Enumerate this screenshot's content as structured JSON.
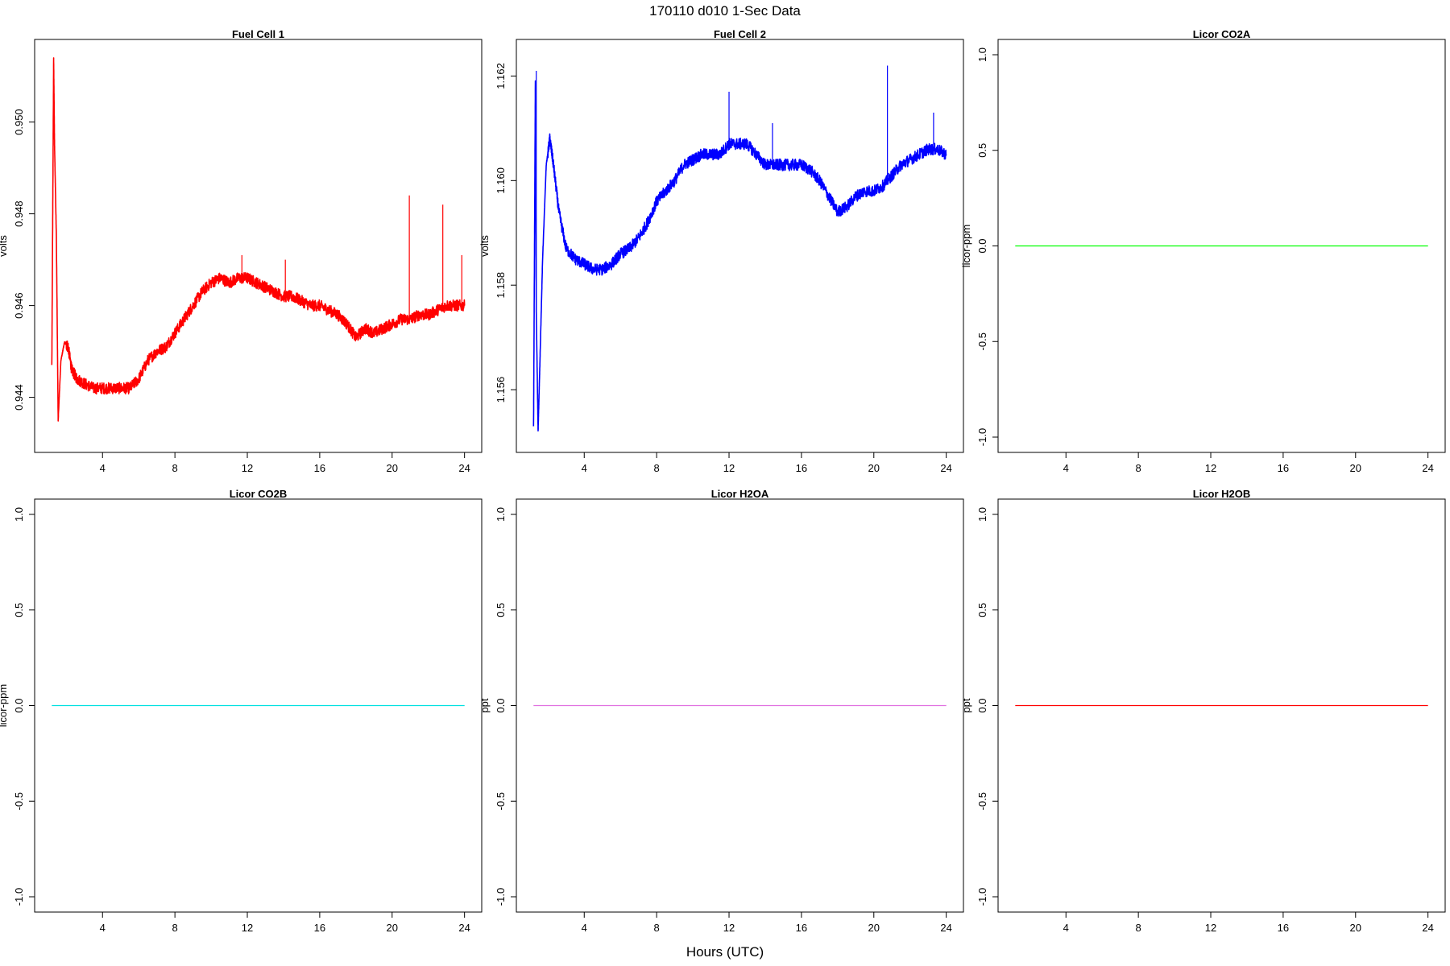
{
  "figure": {
    "title": "170110   d010   1-Sec Data",
    "xlabel": "Hours (UTC)"
  },
  "chart_data": [
    {
      "type": "line",
      "title": "Fuel Cell 1",
      "ylabel": "volts",
      "color": "#ff0000",
      "xlim": [
        0.25,
        24.95
      ],
      "ylim": [
        0.9428,
        0.9518
      ],
      "xticks": [
        4,
        8,
        12,
        16,
        20,
        24
      ],
      "yticks": [
        0.944,
        0.946,
        0.948,
        0.95
      ],
      "ytick_labels": [
        "0.944",
        "0.946",
        "0.948",
        "0.950"
      ],
      "x": [
        1.2,
        1.3,
        1.35,
        1.45,
        1.55,
        1.7,
        1.9,
        2.1,
        2.3,
        2.6,
        3.0,
        3.5,
        4.0,
        4.5,
        5.0,
        5.5,
        6.0,
        6.5,
        7.0,
        7.5,
        8.0,
        8.5,
        9.0,
        9.5,
        10.0,
        10.5,
        11.0,
        11.5,
        12.0,
        12.5,
        13.0,
        13.5,
        14.0,
        14.5,
        15.0,
        15.5,
        16.0,
        16.5,
        17.0,
        17.5,
        18.0,
        18.5,
        19.0,
        19.5,
        20.0,
        20.5,
        21.0,
        21.5,
        22.0,
        22.5,
        23.0,
        23.5,
        24.0
      ],
      "y": [
        0.9447,
        0.9514,
        0.9495,
        0.9475,
        0.9435,
        0.9448,
        0.9452,
        0.9451,
        0.9446,
        0.9444,
        0.9443,
        0.9442,
        0.9442,
        0.9442,
        0.9442,
        0.9442,
        0.9444,
        0.9448,
        0.945,
        0.9451,
        0.9454,
        0.9457,
        0.946,
        0.9463,
        0.9465,
        0.9466,
        0.9465,
        0.9466,
        0.9466,
        0.9465,
        0.9464,
        0.9463,
        0.9462,
        0.9462,
        0.9461,
        0.946,
        0.946,
        0.9459,
        0.9458,
        0.9456,
        0.9453,
        0.9455,
        0.9454,
        0.9455,
        0.9456,
        0.9457,
        0.9457,
        0.9458,
        0.9458,
        0.9459,
        0.946,
        0.946,
        0.946
      ],
      "spikes": [
        [
          11.7,
          0.9471
        ],
        [
          14.1,
          0.947
        ],
        [
          20.95,
          0.9484
        ],
        [
          22.8,
          0.9482
        ],
        [
          23.85,
          0.9471
        ]
      ]
    },
    {
      "type": "line",
      "title": "Fuel Cell 2",
      "ylabel": "volts",
      "color": "#0000ff",
      "xlim": [
        0.25,
        24.95
      ],
      "ylim": [
        1.1548,
        1.1627
      ],
      "xticks": [
        4,
        8,
        12,
        16,
        20,
        24
      ],
      "yticks": [
        1.156,
        1.158,
        1.16,
        1.162
      ],
      "ytick_labels": [
        "1.156",
        "1.158",
        "1.160",
        "1.162"
      ],
      "x": [
        1.2,
        1.3,
        1.35,
        1.45,
        1.55,
        1.7,
        1.9,
        2.1,
        2.3,
        2.6,
        3.0,
        3.5,
        4.0,
        4.5,
        5.0,
        5.5,
        6.0,
        6.5,
        7.0,
        7.5,
        8.0,
        8.5,
        9.0,
        9.5,
        10.0,
        10.5,
        11.0,
        11.5,
        12.0,
        12.5,
        13.0,
        13.5,
        14.0,
        14.5,
        15.0,
        15.5,
        16.0,
        16.5,
        17.0,
        17.5,
        18.0,
        18.5,
        19.0,
        19.5,
        20.0,
        20.5,
        21.0,
        21.5,
        22.0,
        22.5,
        23.0,
        23.5,
        24.0
      ],
      "y": [
        1.1553,
        1.1619,
        1.1575,
        1.1552,
        1.1565,
        1.1585,
        1.1603,
        1.1608,
        1.1603,
        1.1594,
        1.1587,
        1.1585,
        1.1584,
        1.1583,
        1.1583,
        1.1584,
        1.1586,
        1.1587,
        1.1589,
        1.1592,
        1.1596,
        1.1598,
        1.16,
        1.1603,
        1.1604,
        1.1605,
        1.1605,
        1.1605,
        1.1607,
        1.1607,
        1.1607,
        1.1605,
        1.1603,
        1.1603,
        1.1603,
        1.1603,
        1.1603,
        1.1602,
        1.16,
        1.1597,
        1.1594,
        1.1595,
        1.1597,
        1.1598,
        1.1598,
        1.1599,
        1.1601,
        1.1603,
        1.1604,
        1.1605,
        1.1606,
        1.1606,
        1.1605
      ],
      "spikes": [
        [
          1.35,
          1.1621
        ],
        [
          12.0,
          1.1617
        ],
        [
          14.4,
          1.1611
        ],
        [
          20.75,
          1.1622
        ],
        [
          23.3,
          1.1613
        ]
      ]
    },
    {
      "type": "line",
      "title": "Licor CO2A",
      "ylabel": "licor-ppm",
      "color": "#00ff00",
      "xlim": [
        0.25,
        24.95
      ],
      "ylim": [
        -1.08,
        1.08
      ],
      "xticks": [
        4,
        8,
        12,
        16,
        20,
        24
      ],
      "yticks": [
        -1.0,
        -0.5,
        0.0,
        0.5,
        1.0
      ],
      "ytick_labels": [
        "-1.0",
        "-0.5",
        "0.0",
        "0.5",
        "1.0"
      ],
      "x": [
        1.2,
        24.0
      ],
      "y": [
        0,
        0
      ]
    },
    {
      "type": "line",
      "title": "Licor CO2B",
      "ylabel": "licor-ppm",
      "color": "#00e0e0",
      "xlim": [
        0.25,
        24.95
      ],
      "ylim": [
        -1.08,
        1.08
      ],
      "xticks": [
        4,
        8,
        12,
        16,
        20,
        24
      ],
      "yticks": [
        -1.0,
        -0.5,
        0.0,
        0.5,
        1.0
      ],
      "ytick_labels": [
        "-1.0",
        "-0.5",
        "0.0",
        "0.5",
        "1.0"
      ],
      "x": [
        1.2,
        24.0
      ],
      "y": [
        0,
        0
      ]
    },
    {
      "type": "line",
      "title": "Licor H2OA",
      "ylabel": "ppt",
      "color": "#e070e0",
      "xlim": [
        0.25,
        24.95
      ],
      "ylim": [
        -1.08,
        1.08
      ],
      "xticks": [
        4,
        8,
        12,
        16,
        20,
        24
      ],
      "yticks": [
        -1.0,
        -0.5,
        0.0,
        0.5,
        1.0
      ],
      "ytick_labels": [
        "-1.0",
        "-0.5",
        "0.0",
        "0.5",
        "1.0"
      ],
      "x": [
        1.2,
        24.0
      ],
      "y": [
        0,
        0
      ]
    },
    {
      "type": "line",
      "title": "Licor H2OB",
      "ylabel": "ppt",
      "color": "#ff0000",
      "xlim": [
        0.25,
        24.95
      ],
      "ylim": [
        -1.08,
        1.08
      ],
      "xticks": [
        4,
        8,
        12,
        16,
        20,
        24
      ],
      "yticks": [
        -1.0,
        -0.5,
        0.0,
        0.5,
        1.0
      ],
      "ytick_labels": [
        "-1.0",
        "-0.5",
        "0.0",
        "0.5",
        "1.0"
      ],
      "x": [
        1.2,
        24.0
      ],
      "y": [
        0,
        0
      ]
    }
  ]
}
